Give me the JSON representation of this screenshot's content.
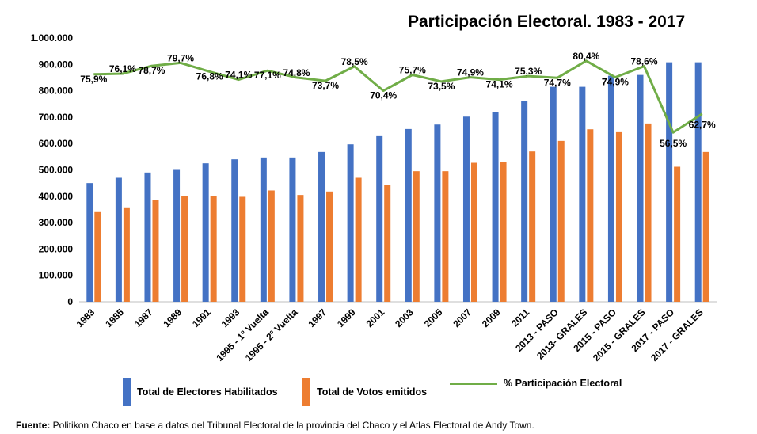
{
  "chart_data": {
    "type": "bar",
    "title": "Participación Electoral. 1983 - 2017",
    "categories": [
      "1983",
      "1985",
      "1987",
      "1989",
      "1991",
      "1993",
      "1995 - 1º Vuelta",
      "1995 - 2º Vuelta",
      "1997",
      "1999",
      "2001",
      "2003",
      "2005",
      "2007",
      "2009",
      "2011",
      "2013 - PASO",
      "2013- GRALES",
      "2015 - PASO",
      "2015 - GRALES",
      "2017 - PASO",
      "2017 - GRALES"
    ],
    "series": [
      {
        "name": "Total de Electores Habilitados",
        "type": "bar",
        "color": "#4472C4",
        "values": [
          450000,
          470000,
          490000,
          500000,
          525000,
          540000,
          547000,
          547000,
          568000,
          597000,
          628000,
          655000,
          672000,
          702000,
          718000,
          760000,
          815000,
          815000,
          857000,
          860000,
          908000,
          908000
        ]
      },
      {
        "name": "Total de Votos emitidos",
        "type": "bar",
        "color": "#ED7D31",
        "values": [
          340000,
          355000,
          385000,
          400000,
          400000,
          398000,
          422000,
          405000,
          418000,
          470000,
          443000,
          495000,
          495000,
          527000,
          530000,
          570000,
          610000,
          654000,
          643000,
          676000,
          512000,
          568000
        ]
      },
      {
        "name": "% Participación Electoral",
        "type": "line",
        "color": "#70AD47",
        "values": [
          75.9,
          76.1,
          78.7,
          79.7,
          76.8,
          74.1,
          77.1,
          74.8,
          73.7,
          78.5,
          70.4,
          75.7,
          73.5,
          74.9,
          74.1,
          75.3,
          74.7,
          80.4,
          74.9,
          78.6,
          56.5,
          62.7
        ],
        "labels": [
          "75,9%",
          "76,1%",
          "78,7%",
          "79,7%",
          "76,8%",
          "74,1%",
          "77,1%",
          "74,8%",
          "73,7%",
          "78,5%",
          "70,4%",
          "75,7%",
          "73,5%",
          "74,9%",
          "74,1%",
          "75,3%",
          "74,7%",
          "80,4%",
          "74,9%",
          "78,6%",
          "56,5%",
          "62,7%"
        ]
      }
    ],
    "y_ticks": [
      "0",
      "100.000",
      "200.000",
      "300.000",
      "400.000",
      "500.000",
      "600.000",
      "700.000",
      "800.000",
      "900.000",
      "1.000.000"
    ],
    "ylim": [
      0,
      1000000
    ],
    "line_pct_range": [
      0,
      100
    ],
    "legend_position": "bottom",
    "grid": false
  },
  "legend": {
    "item1": "Total de Electores Habilitados",
    "item2": "Total de Votos emitidos",
    "item3": "% Participación Electoral"
  },
  "source": {
    "prefix": "Fuente:",
    "text": " Politikon Chaco en base a datos del Tribunal Electoral de la provincia del Chaco y el Atlas Electoral de Andy Town."
  }
}
